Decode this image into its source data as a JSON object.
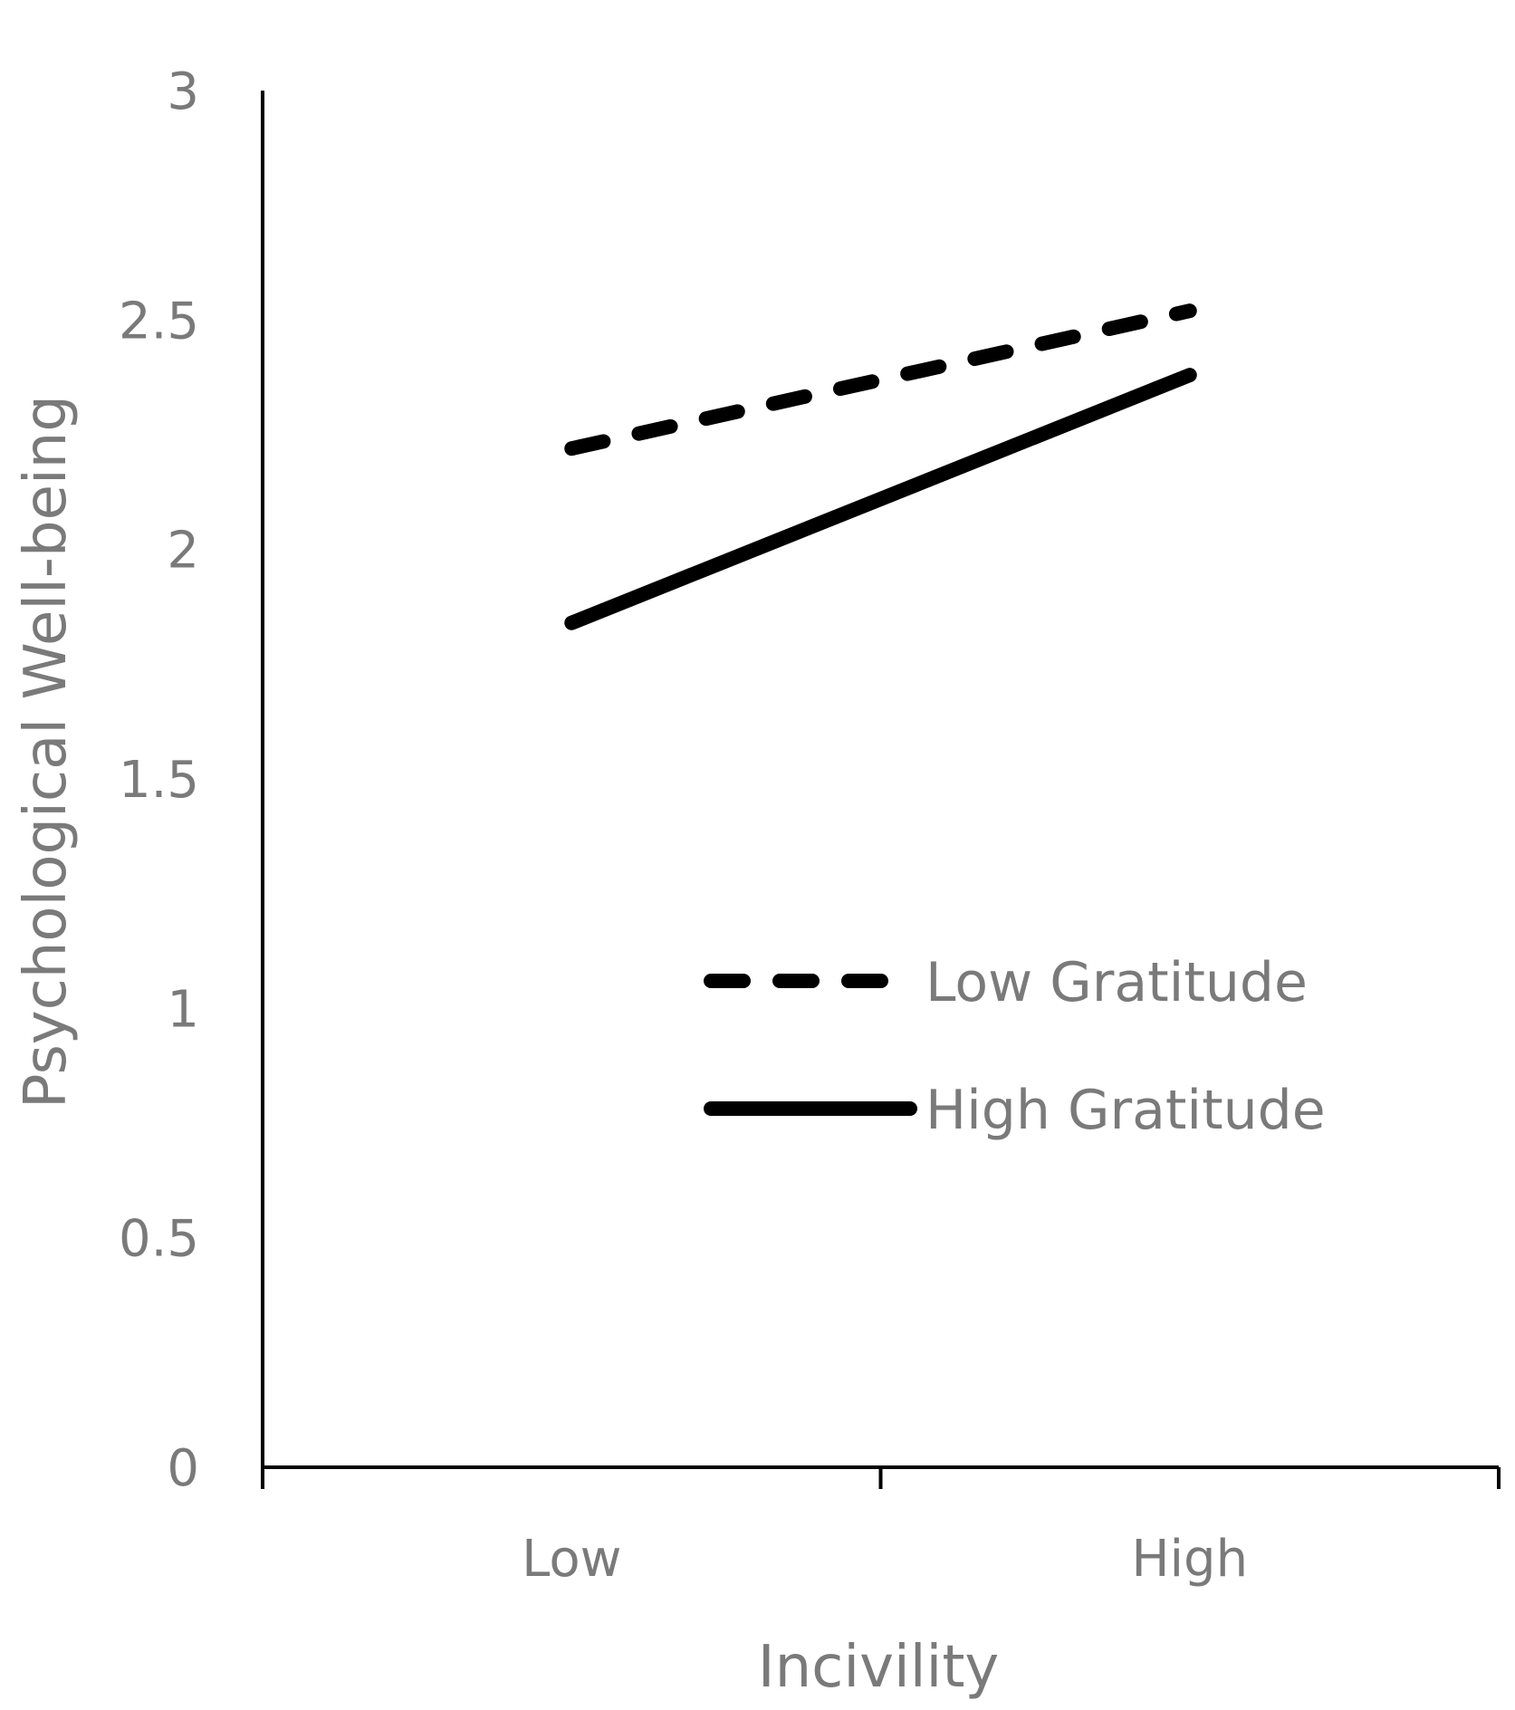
{
  "chart_data": {
    "type": "line",
    "title": "",
    "xlabel": "Incivility",
    "ylabel": "Psychological Well-being",
    "categories": [
      "Low",
      "High"
    ],
    "ylim": [
      0,
      3
    ],
    "yticks": [
      "0",
      "0.5",
      "1",
      "1.5",
      "2",
      "2.5",
      "3"
    ],
    "grid": false,
    "legend_position": "center-right",
    "series": [
      {
        "name": "Low Gratitude",
        "values": [
          2.22,
          2.52
        ],
        "style": "dashed",
        "color": "#000000"
      },
      {
        "name": "High Gratitude",
        "values": [
          1.84,
          2.38
        ],
        "style": "solid",
        "color": "#000000"
      }
    ]
  }
}
